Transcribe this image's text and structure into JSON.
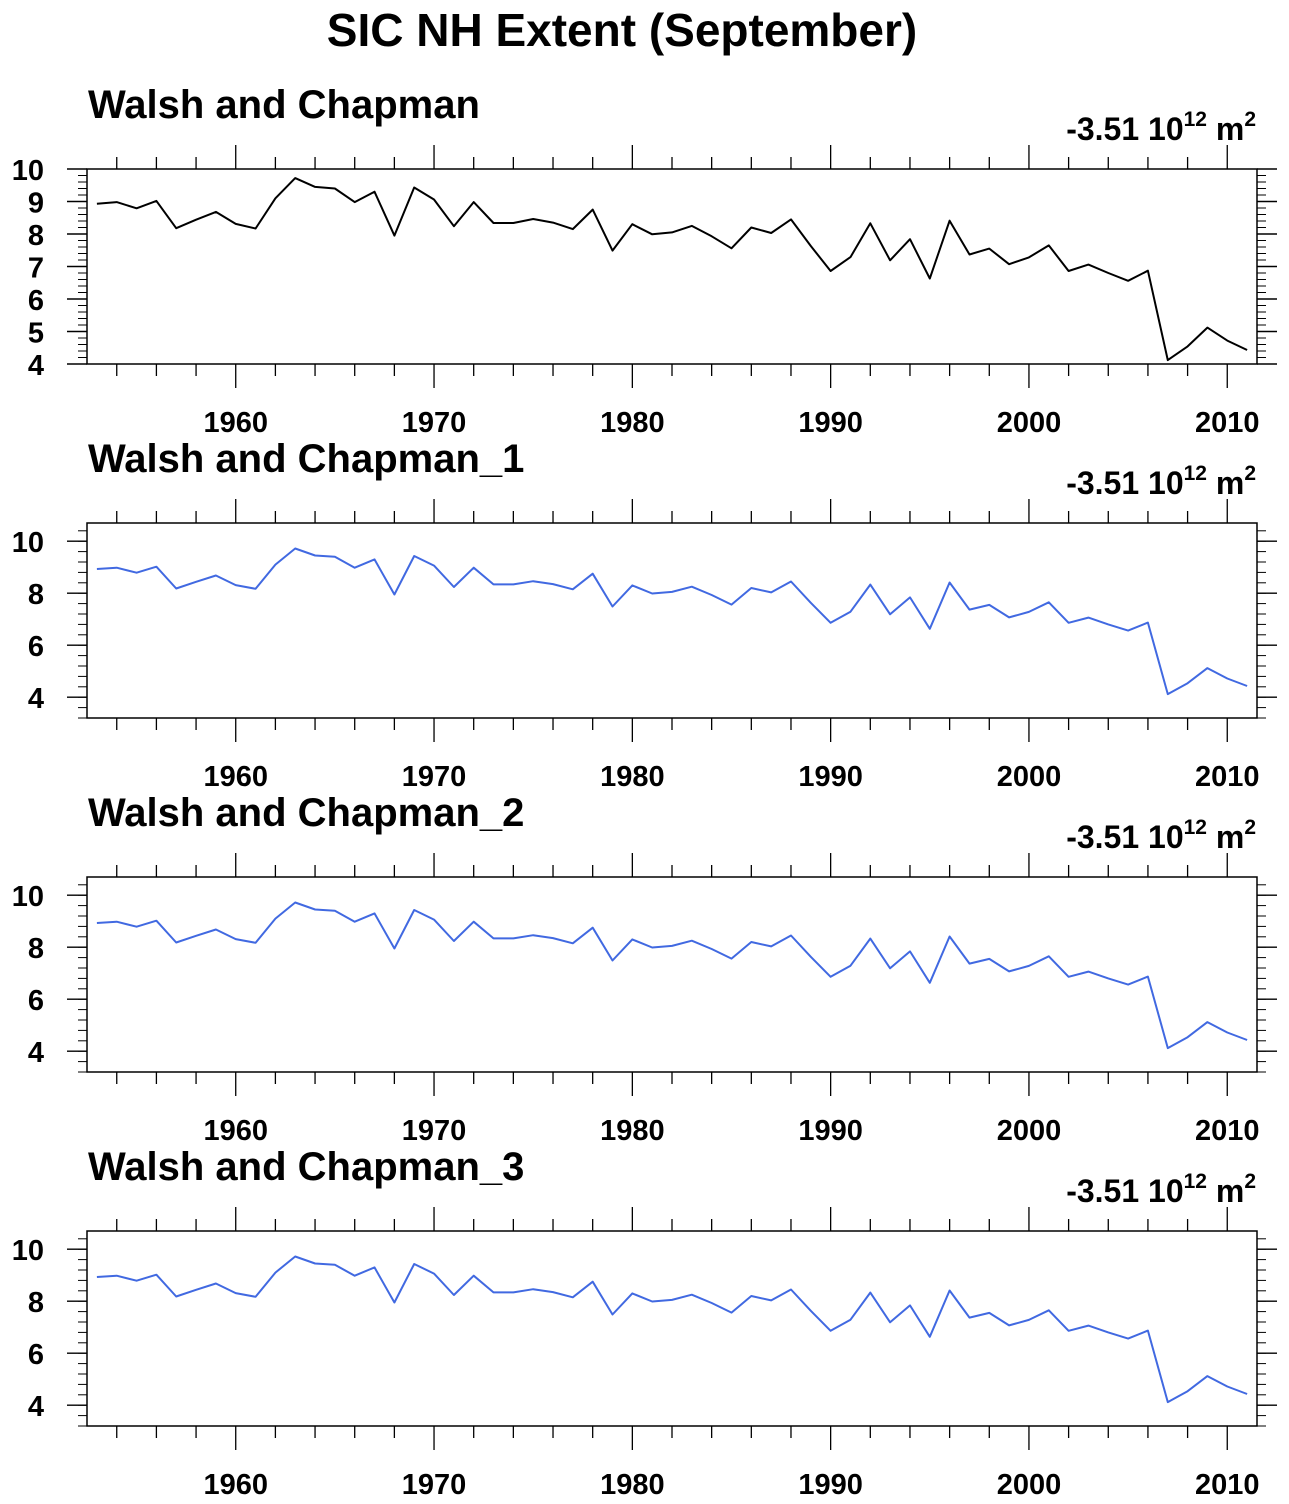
{
  "figure": {
    "title": "SIC NH Extent (September)"
  },
  "chart_data": [
    {
      "type": "line",
      "title": "Walsh and Chapman",
      "annotation": {
        "value": "-3.51",
        "base": "10",
        "exponent": "12",
        "unit": "m",
        "unit_exponent": "2"
      },
      "xlabel": "",
      "ylabel": "",
      "xlim": [
        1952.5,
        2011.5
      ],
      "ylim": [
        4,
        10
      ],
      "xticks": [
        1960,
        1970,
        1980,
        1990,
        2000,
        2010
      ],
      "xtick_labels": [
        "1960",
        "1970",
        "1980",
        "1990",
        "2000",
        "2010"
      ],
      "yticks": [
        4,
        5,
        6,
        7,
        8,
        9,
        10
      ],
      "ytick_labels": [
        "4",
        "5",
        "6",
        "7",
        "8",
        "9",
        "10"
      ],
      "color": "#000000",
      "x": [
        1953,
        1954,
        1955,
        1956,
        1957,
        1958,
        1959,
        1960,
        1961,
        1962,
        1963,
        1964,
        1965,
        1966,
        1967,
        1968,
        1969,
        1970,
        1971,
        1972,
        1973,
        1974,
        1975,
        1976,
        1977,
        1978,
        1979,
        1980,
        1981,
        1982,
        1983,
        1984,
        1985,
        1986,
        1987,
        1988,
        1989,
        1990,
        1991,
        1992,
        1993,
        1994,
        1995,
        1996,
        1997,
        1998,
        1999,
        2000,
        2001,
        2002,
        2003,
        2004,
        2005,
        2006,
        2007,
        2008,
        2009,
        2010,
        2011
      ],
      "values": [
        8.93,
        8.98,
        8.79,
        9.02,
        8.18,
        8.44,
        8.68,
        8.31,
        8.17,
        9.1,
        9.72,
        9.45,
        9.4,
        8.98,
        9.3,
        7.95,
        9.43,
        9.06,
        8.24,
        8.98,
        8.34,
        8.34,
        8.46,
        8.35,
        8.15,
        8.75,
        7.49,
        8.3,
        7.99,
        8.05,
        8.25,
        7.93,
        7.56,
        8.2,
        8.03,
        8.45,
        7.63,
        6.86,
        7.29,
        8.33,
        7.19,
        7.84,
        6.63,
        8.41,
        7.37,
        7.55,
        7.07,
        7.28,
        7.65,
        6.86,
        7.06,
        6.8,
        6.56,
        6.87,
        4.12,
        4.54,
        5.12,
        4.72,
        4.43
      ]
    },
    {
      "type": "line",
      "title": "Walsh and Chapman_1",
      "annotation": {
        "value": "-3.51",
        "base": "10",
        "exponent": "12",
        "unit": "m",
        "unit_exponent": "2"
      },
      "xlabel": "",
      "ylabel": "",
      "xlim": [
        1952.5,
        2011.5
      ],
      "ylim": [
        3.2,
        10.7
      ],
      "xticks": [
        1960,
        1970,
        1980,
        1990,
        2000,
        2010
      ],
      "xtick_labels": [
        "1960",
        "1970",
        "1980",
        "1990",
        "2000",
        "2010"
      ],
      "yticks": [
        4,
        6,
        8,
        10
      ],
      "ytick_labels": [
        "4",
        "6",
        "8",
        "10"
      ],
      "color": "#4169e1",
      "x": [
        1953,
        1954,
        1955,
        1956,
        1957,
        1958,
        1959,
        1960,
        1961,
        1962,
        1963,
        1964,
        1965,
        1966,
        1967,
        1968,
        1969,
        1970,
        1971,
        1972,
        1973,
        1974,
        1975,
        1976,
        1977,
        1978,
        1979,
        1980,
        1981,
        1982,
        1983,
        1984,
        1985,
        1986,
        1987,
        1988,
        1989,
        1990,
        1991,
        1992,
        1993,
        1994,
        1995,
        1996,
        1997,
        1998,
        1999,
        2000,
        2001,
        2002,
        2003,
        2004,
        2005,
        2006,
        2007,
        2008,
        2009,
        2010,
        2011
      ],
      "values": [
        8.93,
        8.98,
        8.79,
        9.02,
        8.18,
        8.44,
        8.68,
        8.31,
        8.17,
        9.1,
        9.72,
        9.45,
        9.4,
        8.98,
        9.3,
        7.95,
        9.43,
        9.06,
        8.24,
        8.98,
        8.34,
        8.34,
        8.46,
        8.35,
        8.15,
        8.75,
        7.49,
        8.3,
        7.99,
        8.05,
        8.25,
        7.93,
        7.56,
        8.2,
        8.03,
        8.45,
        7.63,
        6.86,
        7.29,
        8.33,
        7.19,
        7.84,
        6.63,
        8.41,
        7.37,
        7.55,
        7.07,
        7.28,
        7.65,
        6.86,
        7.06,
        6.8,
        6.56,
        6.87,
        4.12,
        4.54,
        5.12,
        4.72,
        4.43
      ]
    },
    {
      "type": "line",
      "title": "Walsh and Chapman_2",
      "annotation": {
        "value": "-3.51",
        "base": "10",
        "exponent": "12",
        "unit": "m",
        "unit_exponent": "2"
      },
      "xlabel": "",
      "ylabel": "",
      "xlim": [
        1952.5,
        2011.5
      ],
      "ylim": [
        3.2,
        10.7
      ],
      "xticks": [
        1960,
        1970,
        1980,
        1990,
        2000,
        2010
      ],
      "xtick_labels": [
        "1960",
        "1970",
        "1980",
        "1990",
        "2000",
        "2010"
      ],
      "yticks": [
        4,
        6,
        8,
        10
      ],
      "ytick_labels": [
        "4",
        "6",
        "8",
        "10"
      ],
      "color": "#4169e1",
      "x": [
        1953,
        1954,
        1955,
        1956,
        1957,
        1958,
        1959,
        1960,
        1961,
        1962,
        1963,
        1964,
        1965,
        1966,
        1967,
        1968,
        1969,
        1970,
        1971,
        1972,
        1973,
        1974,
        1975,
        1976,
        1977,
        1978,
        1979,
        1980,
        1981,
        1982,
        1983,
        1984,
        1985,
        1986,
        1987,
        1988,
        1989,
        1990,
        1991,
        1992,
        1993,
        1994,
        1995,
        1996,
        1997,
        1998,
        1999,
        2000,
        2001,
        2002,
        2003,
        2004,
        2005,
        2006,
        2007,
        2008,
        2009,
        2010,
        2011
      ],
      "values": [
        8.93,
        8.98,
        8.79,
        9.02,
        8.18,
        8.44,
        8.68,
        8.31,
        8.17,
        9.1,
        9.72,
        9.45,
        9.4,
        8.98,
        9.3,
        7.95,
        9.43,
        9.06,
        8.24,
        8.98,
        8.34,
        8.34,
        8.46,
        8.35,
        8.15,
        8.75,
        7.49,
        8.3,
        7.99,
        8.05,
        8.25,
        7.93,
        7.56,
        8.2,
        8.03,
        8.45,
        7.63,
        6.86,
        7.29,
        8.33,
        7.19,
        7.84,
        6.63,
        8.41,
        7.37,
        7.55,
        7.07,
        7.28,
        7.65,
        6.86,
        7.06,
        6.8,
        6.56,
        6.87,
        4.12,
        4.54,
        5.12,
        4.72,
        4.43
      ]
    },
    {
      "type": "line",
      "title": "Walsh and Chapman_3",
      "annotation": {
        "value": "-3.51",
        "base": "10",
        "exponent": "12",
        "unit": "m",
        "unit_exponent": "2"
      },
      "xlabel": "",
      "ylabel": "",
      "xlim": [
        1952.5,
        2011.5
      ],
      "ylim": [
        3.2,
        10.7
      ],
      "xticks": [
        1960,
        1970,
        1980,
        1990,
        2000,
        2010
      ],
      "xtick_labels": [
        "1960",
        "1970",
        "1980",
        "1990",
        "2000",
        "2010"
      ],
      "yticks": [
        4,
        6,
        8,
        10
      ],
      "ytick_labels": [
        "4",
        "6",
        "8",
        "10"
      ],
      "color": "#4169e1",
      "x": [
        1953,
        1954,
        1955,
        1956,
        1957,
        1958,
        1959,
        1960,
        1961,
        1962,
        1963,
        1964,
        1965,
        1966,
        1967,
        1968,
        1969,
        1970,
        1971,
        1972,
        1973,
        1974,
        1975,
        1976,
        1977,
        1978,
        1979,
        1980,
        1981,
        1982,
        1983,
        1984,
        1985,
        1986,
        1987,
        1988,
        1989,
        1990,
        1991,
        1992,
        1993,
        1994,
        1995,
        1996,
        1997,
        1998,
        1999,
        2000,
        2001,
        2002,
        2003,
        2004,
        2005,
        2006,
        2007,
        2008,
        2009,
        2010,
        2011
      ],
      "values": [
        8.93,
        8.98,
        8.79,
        9.02,
        8.18,
        8.44,
        8.68,
        8.31,
        8.17,
        9.1,
        9.72,
        9.45,
        9.4,
        8.98,
        9.3,
        7.95,
        9.43,
        9.06,
        8.24,
        8.98,
        8.34,
        8.34,
        8.46,
        8.35,
        8.15,
        8.75,
        7.49,
        8.3,
        7.99,
        8.05,
        8.25,
        7.93,
        7.56,
        8.2,
        8.03,
        8.45,
        7.63,
        6.86,
        7.29,
        8.33,
        7.19,
        7.84,
        6.63,
        8.41,
        7.37,
        7.55,
        7.07,
        7.28,
        7.65,
        6.86,
        7.06,
        6.8,
        6.56,
        6.87,
        4.12,
        4.54,
        5.12,
        4.72,
        4.43
      ]
    }
  ]
}
